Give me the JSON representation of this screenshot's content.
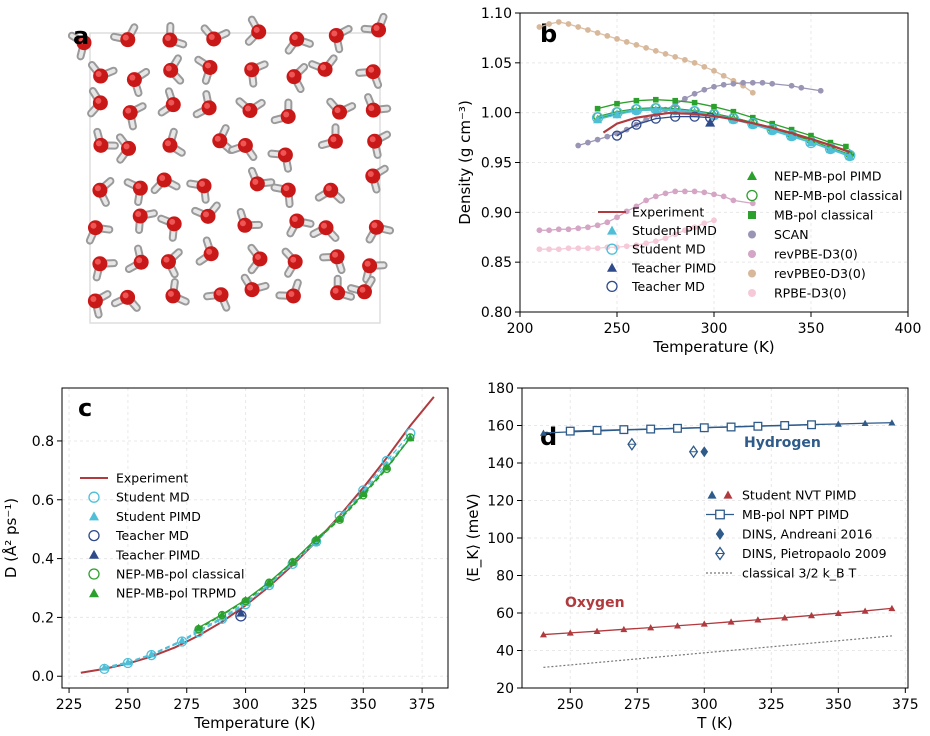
{
  "chart_data": [
    {
      "panel": "a",
      "type": "other",
      "description_label": "a",
      "molecules": 64
    },
    {
      "panel": "b",
      "type": "line",
      "label": "b",
      "xlabel": "Temperature (K)",
      "ylabel": "Density (g cm⁻³)",
      "xlim": [
        200,
        400
      ],
      "ylim": [
        0.8,
        1.1
      ],
      "xticks": [
        "200",
        "250",
        "300",
        "350",
        "400"
      ],
      "yticks": [
        "0.80",
        "0.85",
        "0.90",
        "0.95",
        "1.00",
        "1.05",
        "1.10"
      ],
      "grid": true,
      "legend": [
        {
          "name": "NEP-MB-pol PIMD",
          "color": "#2ca02c",
          "marker": "triangle"
        },
        {
          "name": "NEP-MB-pol classical",
          "color": "#2ca02c",
          "marker": "circle-open"
        },
        {
          "name": "MB-pol classical",
          "color": "#2ca02c",
          "marker": "square"
        },
        {
          "name": "SCAN",
          "color": "#9b95b5",
          "marker": "circle"
        },
        {
          "name": "revPBE-D3(0)",
          "color": "#d4a5c4",
          "marker": "circle"
        },
        {
          "name": "revPBE0-D3(0)",
          "color": "#d8b89a",
          "marker": "circle"
        },
        {
          "name": "RPBE-D3(0)",
          "color": "#f5c9d8",
          "marker": "circle"
        },
        {
          "name": "Experiment",
          "color": "#b03a3e",
          "marker": "line"
        },
        {
          "name": "Student PIMD",
          "color": "#4fbfd8",
          "marker": "triangle"
        },
        {
          "name": "Student MD",
          "color": "#4fbfd8",
          "marker": "circle-open"
        },
        {
          "name": "Teacher PIMD",
          "color": "#2e4a8a",
          "marker": "triangle"
        },
        {
          "name": "Teacher MD",
          "color": "#2e4a8a",
          "marker": "circle-open"
        }
      ],
      "series": [
        {
          "name": "revPBE0-D3(0)",
          "color": "#d8b89a",
          "x": [
            210,
            215,
            220,
            225,
            230,
            235,
            240,
            245,
            250,
            255,
            260,
            265,
            270,
            275,
            280,
            285,
            290,
            295,
            300,
            305,
            310,
            315,
            320
          ],
          "y": [
            1.086,
            1.089,
            1.091,
            1.089,
            1.086,
            1.083,
            1.08,
            1.077,
            1.074,
            1.071,
            1.068,
            1.065,
            1.062,
            1.059,
            1.056,
            1.053,
            1.05,
            1.046,
            1.042,
            1.037,
            1.032,
            1.027,
            1.02
          ]
        },
        {
          "name": "SCAN",
          "color": "#9b95b5",
          "x": [
            230,
            235,
            240,
            245,
            250,
            255,
            260,
            265,
            270,
            275,
            280,
            285,
            290,
            295,
            300,
            305,
            310,
            315,
            320,
            325,
            330,
            340,
            345,
            355
          ],
          "y": [
            0.967,
            0.97,
            0.973,
            0.976,
            0.979,
            0.983,
            0.988,
            0.993,
            0.998,
            1.003,
            1.008,
            1.014,
            1.019,
            1.023,
            1.026,
            1.028,
            1.029,
            1.03,
            1.03,
            1.03,
            1.029,
            1.027,
            1.025,
            1.022
          ]
        },
        {
          "name": "revPBE-D3(0)",
          "color": "#d4a5c4",
          "x": [
            210,
            215,
            220,
            225,
            230,
            235,
            240,
            245,
            250,
            255,
            260,
            265,
            270,
            275,
            280,
            285,
            290,
            295,
            300,
            305,
            310,
            320
          ],
          "y": [
            0.882,
            0.882,
            0.883,
            0.883,
            0.884,
            0.885,
            0.887,
            0.89,
            0.895,
            0.901,
            0.906,
            0.912,
            0.916,
            0.919,
            0.921,
            0.921,
            0.921,
            0.92,
            0.918,
            0.916,
            0.912,
            0.909
          ]
        },
        {
          "name": "RPBE-D3(0)",
          "color": "#f5c9d8",
          "x": [
            210,
            215,
            220,
            225,
            230,
            235,
            240,
            245,
            250,
            255,
            260,
            265,
            270,
            275,
            280,
            285,
            290,
            295,
            300
          ],
          "y": [
            0.863,
            0.863,
            0.863,
            0.864,
            0.864,
            0.864,
            0.864,
            0.865,
            0.865,
            0.866,
            0.867,
            0.869,
            0.871,
            0.874,
            0.878,
            0.882,
            0.885,
            0.889,
            0.892
          ]
        },
        {
          "name": "MB-pol classical",
          "color": "#2ca02c",
          "x": [
            240,
            250,
            260,
            270,
            280,
            290,
            300,
            310,
            320,
            330,
            340,
            350,
            360,
            368
          ],
          "y": [
            1.004,
            1.009,
            1.012,
            1.013,
            1.012,
            1.01,
            1.006,
            1.001,
            0.995,
            0.989,
            0.983,
            0.977,
            0.97,
            0.966
          ]
        },
        {
          "name": "NEP-MB-pol classical",
          "color": "#2ca02c",
          "x": [
            240,
            250,
            260,
            270,
            280,
            290,
            300,
            310,
            320,
            330,
            340,
            350,
            360,
            370
          ],
          "y": [
            0.996,
            1.001,
            1.004,
            1.005,
            1.004,
            1.002,
            0.999,
            0.995,
            0.99,
            0.984,
            0.978,
            0.972,
            0.965,
            0.958
          ]
        },
        {
          "name": "NEP-MB-pol PIMD",
          "color": "#2ca02c",
          "x": [
            240,
            250,
            260,
            270,
            280,
            290,
            300,
            310,
            320,
            330,
            340,
            350,
            360,
            370
          ],
          "y": [
            0.994,
            0.999,
            1.002,
            1.003,
            1.003,
            1.001,
            0.999,
            0.995,
            0.99,
            0.985,
            0.979,
            0.973,
            0.967,
            0.96
          ]
        },
        {
          "name": "Student MD",
          "color": "#4fbfd8",
          "x": [
            240,
            250,
            260,
            270,
            280,
            290,
            300,
            310,
            320,
            330,
            340,
            350,
            360,
            370
          ],
          "y": [
            0.995,
            1.0,
            1.003,
            1.004,
            1.003,
            1.001,
            0.998,
            0.994,
            0.989,
            0.983,
            0.977,
            0.97,
            0.964,
            0.957
          ]
        },
        {
          "name": "Student PIMD",
          "color": "#4fbfd8",
          "x": [
            240,
            250,
            260,
            270,
            280,
            290,
            300,
            310,
            320,
            330,
            340,
            350,
            360,
            370
          ],
          "y": [
            0.993,
            0.998,
            1.002,
            1.003,
            1.002,
            1.0,
            0.997,
            0.993,
            0.988,
            0.982,
            0.976,
            0.97,
            0.963,
            0.956
          ]
        },
        {
          "name": "Teacher MD",
          "color": "#2e4a8a",
          "x": [
            250,
            260,
            270,
            280,
            290,
            298
          ],
          "y": [
            0.977,
            0.988,
            0.994,
            0.996,
            0.996,
            0.995
          ]
        },
        {
          "name": "Teacher PIMD",
          "color": "#2e4a8a",
          "x": [
            298
          ],
          "y": [
            0.99
          ]
        },
        {
          "name": "Experiment",
          "color": "#b03a3e",
          "x": [
            243,
            250,
            260,
            270,
            277,
            290,
            300,
            310,
            320,
            330,
            340,
            350,
            360,
            370
          ],
          "y": [
            0.98,
            0.989,
            0.995,
            0.998,
            0.9997,
            0.9988,
            0.9966,
            0.9934,
            0.9894,
            0.9848,
            0.9795,
            0.9737,
            0.9674,
            0.9605
          ]
        }
      ]
    },
    {
      "panel": "c",
      "type": "line",
      "label": "c",
      "xlabel": "Temperature (K)",
      "ylabel": "D  (Å² ps⁻¹)",
      "xlim": [
        222,
        386
      ],
      "ylim": [
        -0.04,
        0.98
      ],
      "xticks": [
        "225",
        "250",
        "275",
        "300",
        "325",
        "350",
        "375"
      ],
      "yticks": [
        "0.0",
        "0.2",
        "0.4",
        "0.6",
        "0.8"
      ],
      "grid": true,
      "legend": [
        {
          "name": "Experiment",
          "color": "#b03a3e",
          "marker": "line"
        },
        {
          "name": "Student MD",
          "color": "#4fbfd8",
          "marker": "circle-open"
        },
        {
          "name": "Student PIMD",
          "color": "#4fbfd8",
          "marker": "triangle"
        },
        {
          "name": "Teacher MD",
          "color": "#2e4a8a",
          "marker": "circle-open"
        },
        {
          "name": "Teacher PIMD",
          "color": "#2e4a8a",
          "marker": "triangle"
        },
        {
          "name": "NEP-MB-pol classical",
          "color": "#2ca02c",
          "marker": "circle-open"
        },
        {
          "name": "NEP-MB-pol TRPMD",
          "color": "#2ca02c",
          "marker": "triangle"
        }
      ],
      "series": [
        {
          "name": "Experiment",
          "color": "#b03a3e",
          "x": [
            230,
            240,
            250,
            260,
            270,
            280,
            290,
            300,
            310,
            320,
            330,
            340,
            350,
            360,
            370,
            380
          ],
          "y": [
            0.012,
            0.025,
            0.043,
            0.067,
            0.098,
            0.138,
            0.185,
            0.241,
            0.305,
            0.378,
            0.458,
            0.546,
            0.641,
            0.743,
            0.852,
            0.95
          ]
        },
        {
          "name": "Student MD",
          "color": "#4fbfd8",
          "x": [
            240,
            250,
            260,
            273,
            280,
            290,
            300,
            310,
            320,
            330,
            340,
            350,
            360,
            370
          ],
          "y": [
            0.025,
            0.045,
            0.072,
            0.118,
            0.15,
            0.195,
            0.245,
            0.31,
            0.382,
            0.458,
            0.545,
            0.632,
            0.732,
            0.826
          ]
        },
        {
          "name": "Student PIMD",
          "color": "#4fbfd8",
          "x": [
            240,
            250,
            260,
            273,
            280,
            290,
            300,
            310,
            320,
            330,
            340,
            350,
            360,
            370
          ],
          "y": [
            0.03,
            0.048,
            0.075,
            0.122,
            0.155,
            0.2,
            0.25,
            0.312,
            0.385,
            0.455,
            0.54,
            0.625,
            0.72,
            0.812
          ]
        },
        {
          "name": "Teacher MD",
          "color": "#2e4a8a",
          "x": [
            298
          ],
          "y": [
            0.205
          ]
        },
        {
          "name": "Teacher PIMD",
          "color": "#2e4a8a",
          "x": [
            298
          ],
          "y": [
            0.215
          ]
        },
        {
          "name": "NEP-MB-pol classical",
          "color": "#2ca02c",
          "x": [
            280,
            290,
            300,
            310,
            320,
            330,
            340,
            350,
            360,
            370
          ],
          "y": [
            0.16,
            0.208,
            0.255,
            0.318,
            0.388,
            0.462,
            0.532,
            0.615,
            0.705,
            0.812
          ]
        },
        {
          "name": "NEP-MB-pol TRPMD",
          "color": "#2ca02c",
          "x": [
            280,
            290,
            300,
            310,
            320,
            330,
            340,
            350,
            360,
            370
          ],
          "y": [
            0.165,
            0.21,
            0.26,
            0.32,
            0.39,
            0.468,
            0.535,
            0.62,
            0.71,
            0.81
          ]
        }
      ]
    },
    {
      "panel": "d",
      "type": "line",
      "label": "d",
      "xlabel": "T (K)",
      "ylabel": "⟨E_K⟩  (meV)",
      "xlim": [
        232,
        376
      ],
      "ylim": [
        20,
        180
      ],
      "xticks": [
        "250",
        "275",
        "300",
        "325",
        "350",
        "375"
      ],
      "yticks": [
        "20",
        "40",
        "60",
        "80",
        "100",
        "120",
        "140",
        "160",
        "180"
      ],
      "grid": true,
      "annotations": {
        "hydrogen": "Hydrogen",
        "oxygen": "Oxygen"
      },
      "legend": [
        {
          "name": "Student NVT PIMD",
          "color": "#2e5b8a",
          "marker": "triangle"
        },
        {
          "name": "MB-pol NPT PIMD",
          "color": "#2e5b8a",
          "marker": "square-open"
        },
        {
          "name": "DINS, Andreani 2016",
          "color": "#2e5b8a",
          "marker": "diamond"
        },
        {
          "name": "DINS, Pietropaolo 2009",
          "color": "#2e5b8a",
          "marker": "diamond-open"
        },
        {
          "name": "classical 3/2 k_B T",
          "color": "#777777",
          "marker": "dotted"
        }
      ],
      "series": [
        {
          "name": "Student NVT PIMD (H)",
          "color": "#2e5b8a",
          "x": [
            240,
            250,
            260,
            270,
            280,
            290,
            300,
            310,
            320,
            330,
            340,
            350,
            360,
            370
          ],
          "y": [
            156.0,
            156.6,
            157.1,
            157.6,
            158.0,
            158.5,
            158.9,
            159.3,
            159.7,
            160.1,
            160.5,
            160.8,
            161.2,
            161.5
          ]
        },
        {
          "name": "MB-pol NPT PIMD (H)",
          "color": "#2e5b8a",
          "x": [
            250,
            260,
            270,
            280,
            290,
            300,
            310,
            320,
            330,
            340
          ],
          "y": [
            157.0,
            157.4,
            157.8,
            158.1,
            158.5,
            158.8,
            159.2,
            159.6,
            160.0,
            160.4
          ]
        },
        {
          "name": "DINS, Andreani 2016",
          "color": "#2e5b8a",
          "x": [
            300
          ],
          "y": [
            146.0
          ]
        },
        {
          "name": "DINS, Pietropaolo 2009",
          "color": "#2e5b8a",
          "x": [
            273,
            296
          ],
          "y": [
            150.0,
            146.0
          ]
        },
        {
          "name": "Student NVT PIMD (O)",
          "color": "#b03a3e",
          "x": [
            240,
            250,
            260,
            270,
            280,
            290,
            300,
            310,
            320,
            330,
            340,
            350,
            360,
            370
          ],
          "y": [
            48.5,
            49.4,
            50.3,
            51.3,
            52.2,
            53.2,
            54.2,
            55.3,
            56.4,
            57.5,
            58.7,
            59.9,
            61.1,
            62.5
          ]
        },
        {
          "name": "classical 3/2 k_B T",
          "color": "#777777",
          "x": [
            240,
            370
          ],
          "y": [
            31.0,
            47.8
          ]
        }
      ]
    }
  ]
}
